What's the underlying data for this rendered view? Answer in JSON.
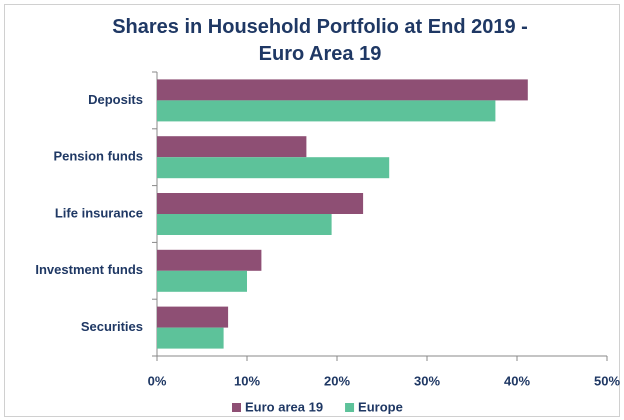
{
  "chart_data": {
    "type": "bar",
    "orientation": "horizontal",
    "title": "Shares in Household Portfolio at End 2019 - Euro Area 19",
    "categories": [
      "Deposits",
      "Pension funds",
      "Life insurance",
      "Investment funds",
      "Securities"
    ],
    "series": [
      {
        "name": "Euro area 19",
        "color": "#8e4f74",
        "values": [
          41.2,
          16.6,
          22.9,
          11.6,
          7.9
        ]
      },
      {
        "name": "Europe",
        "color": "#5dc29a",
        "values": [
          37.6,
          25.8,
          19.4,
          10.0,
          7.4
        ]
      }
    ],
    "xlim": [
      0,
      50
    ],
    "xticks": [
      {
        "value": 0,
        "label": "0%"
      },
      {
        "value": 10,
        "label": "10%"
      },
      {
        "value": 20,
        "label": "20%"
      },
      {
        "value": 30,
        "label": "30%"
      },
      {
        "value": 40,
        "label": "40%"
      },
      {
        "value": 50,
        "label": "50%"
      }
    ],
    "legend": "bottom",
    "grid": false
  }
}
